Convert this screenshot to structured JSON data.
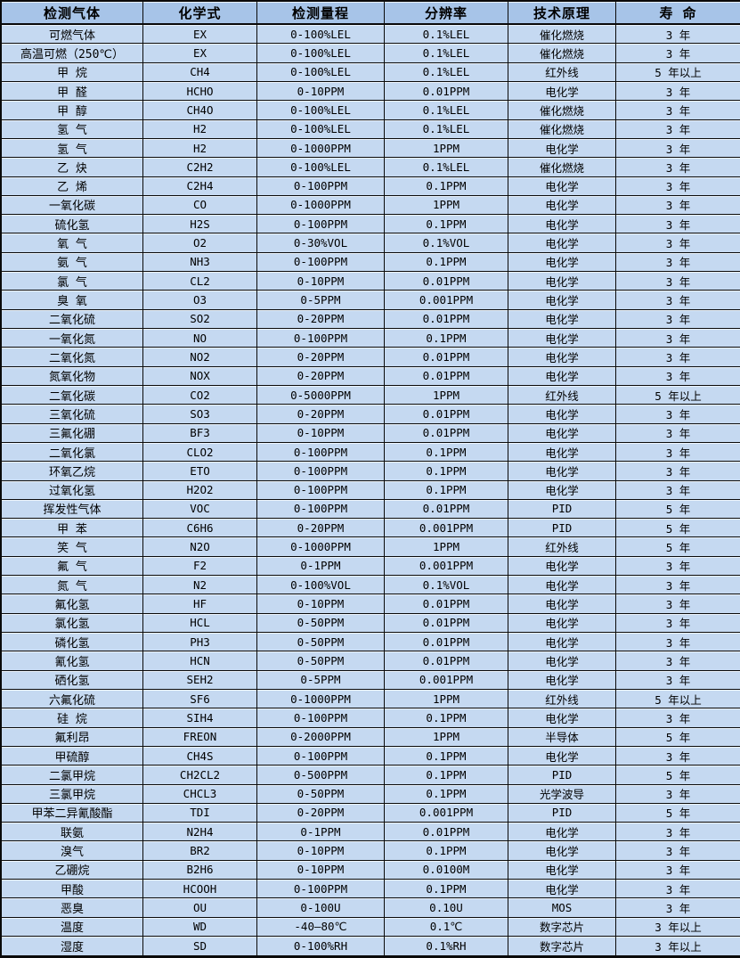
{
  "colors": {
    "header_bg": "#a7c4e8",
    "row_bg": "#c5d9f1",
    "border": "#0a0a0a",
    "text": "#000000"
  },
  "table": {
    "headers": {
      "gas": "检测气体",
      "formula": "化学式",
      "range": "检测量程",
      "resolution": "分辨率",
      "principle": "技术原理",
      "lifespan": "寿 命"
    },
    "rows": [
      [
        "可燃气体",
        "EX",
        "0-100%LEL",
        "0.1%LEL",
        "催化燃烧",
        "3 年"
      ],
      [
        "高温可燃（250℃）",
        "EX",
        "0-100%LEL",
        "0.1%LEL",
        "催化燃烧",
        "3 年"
      ],
      [
        "甲 烷",
        "CH4",
        "0-100%LEL",
        "0.1%LEL",
        "红外线",
        "5 年以上"
      ],
      [
        "甲 醛",
        "HCHO",
        "0-10PPM",
        "0.01PPM",
        "电化学",
        "3 年"
      ],
      [
        "甲 醇",
        "CH4O",
        "0-100%LEL",
        "0.1%LEL",
        "催化燃烧",
        "3 年"
      ],
      [
        "氢 气",
        "H2",
        "0-100%LEL",
        "0.1%LEL",
        "催化燃烧",
        "3 年"
      ],
      [
        "氢 气",
        "H2",
        "0-1000PPM",
        "1PPM",
        "电化学",
        "3 年"
      ],
      [
        "乙 炔",
        "C2H2",
        "0-100%LEL",
        "0.1%LEL",
        "催化燃烧",
        "3 年"
      ],
      [
        "乙 烯",
        "C2H4",
        "0-100PPM",
        "0.1PPM",
        "电化学",
        "3 年"
      ],
      [
        "一氧化碳",
        "CO",
        "0-1000PPM",
        "1PPM",
        "电化学",
        "3 年"
      ],
      [
        "硫化氢",
        "H2S",
        "0-100PPM",
        "0.1PPM",
        "电化学",
        "3 年"
      ],
      [
        "氧 气",
        "O2",
        "0-30%VOL",
        "0.1%VOL",
        "电化学",
        "3 年"
      ],
      [
        "氨 气",
        "NH3",
        "0-100PPM",
        "0.1PPM",
        "电化学",
        "3 年"
      ],
      [
        "氯 气",
        "CL2",
        "0-10PPM",
        "0.01PPM",
        "电化学",
        "3 年"
      ],
      [
        "臭 氧",
        "O3",
        "0-5PPM",
        "0.001PPM",
        "电化学",
        "3 年"
      ],
      [
        "二氧化硫",
        "SO2",
        "0-20PPM",
        "0.01PPM",
        "电化学",
        "3 年"
      ],
      [
        "一氧化氮",
        "NO",
        "0-100PPM",
        "0.1PPM",
        "电化学",
        "3 年"
      ],
      [
        "二氧化氮",
        "NO2",
        "0-20PPM",
        "0.01PPM",
        "电化学",
        "3 年"
      ],
      [
        "氮氧化物",
        "NOX",
        "0-20PPM",
        "0.01PPM",
        "电化学",
        "3 年"
      ],
      [
        "二氧化碳",
        "CO2",
        "0-5000PPM",
        "1PPM",
        "红外线",
        "5 年以上"
      ],
      [
        "三氧化硫",
        "SO3",
        "0-20PPM",
        "0.01PPM",
        "电化学",
        "3 年"
      ],
      [
        "三氟化硼",
        "BF3",
        "0-10PPM",
        "0.01PPM",
        "电化学",
        "3 年"
      ],
      [
        "二氧化氯",
        "CLO2",
        "0-100PPM",
        "0.1PPM",
        "电化学",
        "3 年"
      ],
      [
        "环氧乙烷",
        "ETO",
        "0-100PPM",
        "0.1PPM",
        "电化学",
        "3 年"
      ],
      [
        "过氧化氢",
        "H2O2",
        "0-100PPM",
        "0.1PPM",
        "电化学",
        "3 年"
      ],
      [
        "挥发性气体",
        "VOC",
        "0-100PPM",
        "0.01PPM",
        "PID",
        "5 年"
      ],
      [
        "甲 苯",
        "C6H6",
        "0-20PPM",
        "0.001PPM",
        "PID",
        "5 年"
      ],
      [
        "笑 气",
        "N2O",
        "0-1000PPM",
        "1PPM",
        "红外线",
        "5 年"
      ],
      [
        "氟 气",
        "F2",
        "0-1PPM",
        "0.001PPM",
        "电化学",
        "3 年"
      ],
      [
        "氮 气",
        "N2",
        "0-100%VOL",
        "0.1%VOL",
        "电化学",
        "3 年"
      ],
      [
        "氟化氢",
        "HF",
        "0-10PPM",
        "0.01PPM",
        "电化学",
        "3 年"
      ],
      [
        "氯化氢",
        "HCL",
        "0-50PPM",
        "0.01PPM",
        "电化学",
        "3 年"
      ],
      [
        "磷化氢",
        "PH3",
        "0-50PPM",
        "0.01PPM",
        "电化学",
        "3 年"
      ],
      [
        "氰化氢",
        "HCN",
        "0-50PPM",
        "0.01PPM",
        "电化学",
        "3 年"
      ],
      [
        "硒化氢",
        "SEH2",
        "0-5PPM",
        "0.001PPM",
        "电化学",
        "3 年"
      ],
      [
        "六氟化硫",
        "SF6",
        "0-1000PPM",
        "1PPM",
        "红外线",
        "5 年以上"
      ],
      [
        "硅 烷",
        "SIH4",
        "0-100PPM",
        "0.1PPM",
        "电化学",
        "3 年"
      ],
      [
        "氟利昂",
        "FREON",
        "0-2000PPM",
        "1PPM",
        "半导体",
        "5 年"
      ],
      [
        "甲硫醇",
        "CH4S",
        "0-100PPM",
        "0.1PPM",
        "电化学",
        "3 年"
      ],
      [
        "二氯甲烷",
        "CH2CL2",
        "0-500PPM",
        "0.1PPM",
        "PID",
        "5 年"
      ],
      [
        "三氯甲烷",
        "CHCL3",
        "0-50PPM",
        "0.1PPM",
        "光学波导",
        "3 年"
      ],
      [
        "甲苯二异氰酸酯",
        "TDI",
        "0-20PPM",
        "0.001PPM",
        "PID",
        "5 年"
      ],
      [
        "联氨",
        "N2H4",
        "0-1PPM",
        "0.01PPM",
        "电化学",
        "3 年"
      ],
      [
        "溴气",
        "BR2",
        "0-10PPM",
        "0.1PPM",
        "电化学",
        "3 年"
      ],
      [
        "乙硼烷",
        "B2H6",
        "0-10PPM",
        "0.0100M",
        "电化学",
        "3 年"
      ],
      [
        "甲酸",
        "HCOOH",
        "0-100PPM",
        "0.1PPM",
        "电化学",
        "3 年"
      ],
      [
        "恶臭",
        "OU",
        "0-100U",
        "0.10U",
        "MOS",
        "3 年"
      ],
      [
        "温度",
        "WD",
        "-40—80℃",
        "0.1℃",
        "数字芯片",
        "3 年以上"
      ],
      [
        "湿度",
        "SD",
        "0-100%RH",
        "0.1%RH",
        "数字芯片",
        "3 年以上"
      ]
    ]
  }
}
